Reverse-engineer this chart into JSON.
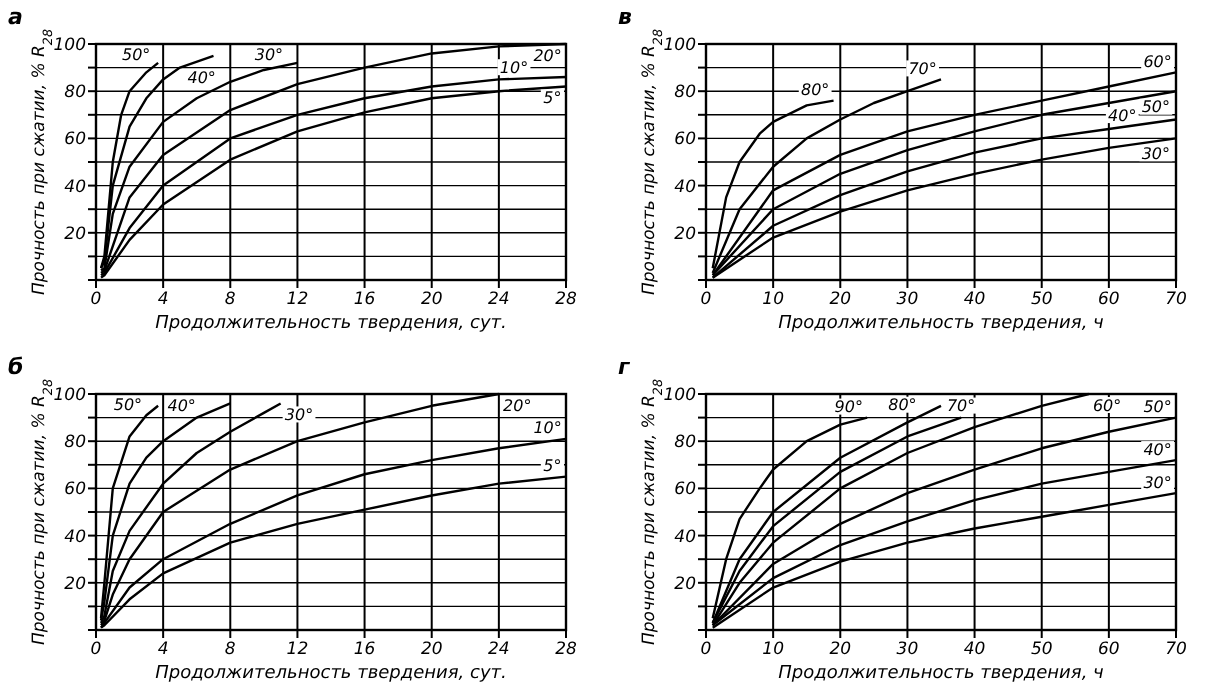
{
  "chart_data": [
    {
      "type": "line",
      "title": "а",
      "xlabel": "Продолжительность твердения, сут.",
      "ylabel": "Прочность при сжатии, % R$_{28}$",
      "xlim": [
        0,
        28
      ],
      "ylim": [
        0,
        100
      ],
      "xticks": [
        0,
        4,
        8,
        12,
        16,
        20,
        24,
        28
      ],
      "yticks": [
        {
          "value": 0,
          "label": null
        },
        {
          "value": 10,
          "label": null
        },
        20,
        {
          "value": 30,
          "label": null
        },
        40,
        {
          "value": 50,
          "label": null
        },
        60,
        {
          "value": 70,
          "label": null
        },
        80,
        {
          "value": 90,
          "label": null
        },
        100
      ],
      "grid": true,
      "series": [
        {
          "name": "50°",
          "color": "#000000",
          "x": [
            0.3,
            0.5,
            1,
            1.5,
            2,
            3,
            3.7
          ],
          "values": [
            5,
            10,
            50,
            70,
            80,
            88,
            92
          ]
        },
        {
          "name": "40°",
          "color": "#000000",
          "x": [
            0.3,
            0.5,
            1,
            2,
            3,
            4,
            5,
            7
          ],
          "values": [
            5,
            8,
            40,
            65,
            77,
            85,
            90,
            95
          ]
        },
        {
          "name": "30°",
          "color": "#000000",
          "x": [
            0.3,
            0.5,
            1,
            2,
            4,
            6,
            8,
            10,
            12
          ],
          "values": [
            4,
            5,
            28,
            48,
            67,
            77,
            84,
            89,
            92
          ]
        },
        {
          "name": "20°",
          "color": "#000000",
          "x": [
            0.3,
            0.5,
            2,
            4,
            8,
            12,
            16,
            20,
            24,
            28
          ],
          "values": [
            3,
            4,
            35,
            53,
            72,
            83,
            90,
            96,
            99,
            100
          ]
        },
        {
          "name": "10°",
          "color": "#000000",
          "x": [
            0.3,
            0.5,
            2,
            4,
            8,
            12,
            16,
            20,
            24,
            28
          ],
          "values": [
            2,
            3,
            22,
            40,
            60,
            70,
            77,
            82,
            85,
            86
          ]
        },
        {
          "name": "5°",
          "color": "#000000",
          "x": [
            0.3,
            0.5,
            2,
            4,
            8,
            12,
            16,
            20,
            24,
            28
          ],
          "values": [
            1,
            2,
            17,
            32,
            51,
            63,
            71,
            77,
            80,
            82
          ]
        }
      ]
    },
    {
      "type": "line",
      "title": "в",
      "xlabel": "Продолжительность твердения, ч",
      "ylabel": "Прочность при сжатии, % R$_{28}$",
      "xlim": [
        0,
        70
      ],
      "ylim": [
        0,
        100
      ],
      "xticks": [
        0,
        10,
        20,
        30,
        40,
        50,
        60,
        70
      ],
      "yticks": [
        {
          "value": 0,
          "label": null
        },
        {
          "value": 10,
          "label": null
        },
        20,
        {
          "value": 30,
          "label": null
        },
        40,
        {
          "value": 50,
          "label": null
        },
        60,
        {
          "value": 70,
          "label": null
        },
        80,
        {
          "value": 90,
          "label": null
        },
        100
      ],
      "grid": true,
      "series": [
        {
          "name": "80°",
          "color": "#000000",
          "x": [
            1,
            3,
            5,
            8,
            10,
            15,
            19
          ],
          "values": [
            5,
            35,
            50,
            62,
            67,
            74,
            76
          ]
        },
        {
          "name": "70°",
          "color": "#000000",
          "x": [
            1,
            5,
            10,
            15,
            20,
            25,
            30,
            35
          ],
          "values": [
            3,
            30,
            48,
            60,
            68,
            75,
            80,
            85
          ]
        },
        {
          "name": "60°",
          "color": "#000000",
          "x": [
            1,
            10,
            20,
            30,
            40,
            50,
            60,
            70
          ],
          "values": [
            2,
            38,
            53,
            63,
            70,
            76,
            82,
            88
          ]
        },
        {
          "name": "50°",
          "color": "#000000",
          "x": [
            1,
            10,
            20,
            30,
            40,
            50,
            60,
            70
          ],
          "values": [
            2,
            30,
            45,
            55,
            63,
            70,
            75,
            80
          ]
        },
        {
          "name": "40°",
          "color": "#000000",
          "x": [
            1,
            10,
            20,
            30,
            40,
            50,
            60,
            70
          ],
          "values": [
            1,
            23,
            36,
            46,
            54,
            60,
            64,
            68
          ]
        },
        {
          "name": "30°",
          "color": "#000000",
          "x": [
            1,
            10,
            20,
            30,
            40,
            50,
            60,
            70
          ],
          "values": [
            1,
            18,
            29,
            38,
            45,
            51,
            56,
            60
          ]
        }
      ]
    },
    {
      "type": "line",
      "title": "б",
      "xlabel": "Продолжительность твердения, сут.",
      "ylabel": "Прочность при сжатии, % R$_{28}$",
      "xlim": [
        0,
        28
      ],
      "ylim": [
        0,
        100
      ],
      "xticks": [
        0,
        4,
        8,
        12,
        16,
        20,
        24,
        28
      ],
      "yticks": [
        {
          "value": 0,
          "label": null
        },
        {
          "value": 10,
          "label": null
        },
        20,
        {
          "value": 30,
          "label": null
        },
        40,
        {
          "value": 50,
          "label": null
        },
        60,
        {
          "value": 70,
          "label": null
        },
        80,
        {
          "value": 90,
          "label": null
        },
        100
      ],
      "grid": true,
      "series": [
        {
          "name": "50°",
          "color": "#000000",
          "x": [
            0.3,
            0.5,
            1,
            2,
            3,
            3.7
          ],
          "values": [
            5,
            20,
            60,
            82,
            91,
            95
          ]
        },
        {
          "name": "40°",
          "color": "#000000",
          "x": [
            0.3,
            0.5,
            1,
            2,
            3,
            4,
            6,
            8
          ],
          "values": [
            4,
            12,
            40,
            62,
            73,
            80,
            90,
            96
          ]
        },
        {
          "name": "30°",
          "color": "#000000",
          "x": [
            0.3,
            0.5,
            1,
            2,
            4,
            6,
            8,
            10,
            11
          ],
          "values": [
            3,
            6,
            25,
            42,
            62,
            75,
            84,
            92,
            96
          ]
        },
        {
          "name": "20°",
          "color": "#000000",
          "x": [
            0.3,
            0.5,
            1,
            2,
            4,
            8,
            12,
            16,
            20,
            24
          ],
          "values": [
            2,
            4,
            15,
            30,
            50,
            68,
            80,
            88,
            95,
            100
          ]
        },
        {
          "name": "10°",
          "color": "#000000",
          "x": [
            0.3,
            0.5,
            2,
            4,
            8,
            12,
            16,
            20,
            24,
            28
          ],
          "values": [
            1,
            3,
            18,
            30,
            45,
            57,
            66,
            72,
            77,
            81
          ]
        },
        {
          "name": "5°",
          "color": "#000000",
          "x": [
            0.3,
            0.5,
            2,
            4,
            8,
            12,
            16,
            20,
            24,
            28
          ],
          "values": [
            1,
            2,
            13,
            24,
            37,
            45,
            51,
            57,
            62,
            65
          ]
        }
      ]
    },
    {
      "type": "line",
      "title": "г",
      "xlabel": "Продолжительность твердения, ч",
      "ylabel": "Прочность при сжатии, % R$_{28}$",
      "xlim": [
        0,
        70
      ],
      "ylim": [
        0,
        100
      ],
      "xticks": [
        0,
        10,
        20,
        30,
        40,
        50,
        60,
        70
      ],
      "yticks": [
        {
          "value": 0,
          "label": null
        },
        {
          "value": 10,
          "label": null
        },
        20,
        {
          "value": 30,
          "label": null
        },
        40,
        {
          "value": 50,
          "label": null
        },
        60,
        {
          "value": 70,
          "label": null
        },
        80,
        {
          "value": 90,
          "label": null
        },
        100
      ],
      "grid": true,
      "series": [
        {
          "name": "90°",
          "color": "#000000",
          "x": [
            1,
            3,
            5,
            8,
            10,
            15,
            20,
            24
          ],
          "values": [
            5,
            30,
            47,
            60,
            68,
            80,
            87,
            90
          ]
        },
        {
          "name": "80°",
          "color": "#000000",
          "x": [
            1,
            5,
            10,
            20,
            30,
            35
          ],
          "values": [
            3,
            30,
            50,
            73,
            88,
            95
          ]
        },
        {
          "name": "70°",
          "color": "#000000",
          "x": [
            1,
            5,
            10,
            20,
            30,
            38
          ],
          "values": [
            3,
            25,
            44,
            67,
            82,
            90
          ]
        },
        {
          "name": "60°",
          "color": "#000000",
          "x": [
            1,
            5,
            10,
            20,
            30,
            40,
            50,
            57
          ],
          "values": [
            2,
            20,
            37,
            60,
            75,
            86,
            95,
            100
          ]
        },
        {
          "name": "50°",
          "color": "#000000",
          "x": [
            1,
            10,
            20,
            30,
            40,
            50,
            60,
            70
          ],
          "values": [
            2,
            28,
            45,
            58,
            68,
            77,
            84,
            90
          ]
        },
        {
          "name": "40°",
          "color": "#000000",
          "x": [
            1,
            10,
            20,
            30,
            40,
            50,
            60,
            70
          ],
          "values": [
            2,
            22,
            36,
            46,
            55,
            62,
            67,
            72
          ]
        },
        {
          "name": "30°",
          "color": "#000000",
          "x": [
            1,
            10,
            20,
            30,
            40,
            50,
            60,
            70
          ],
          "values": [
            1,
            18,
            29,
            37,
            43,
            48,
            53,
            58
          ]
        }
      ]
    }
  ]
}
